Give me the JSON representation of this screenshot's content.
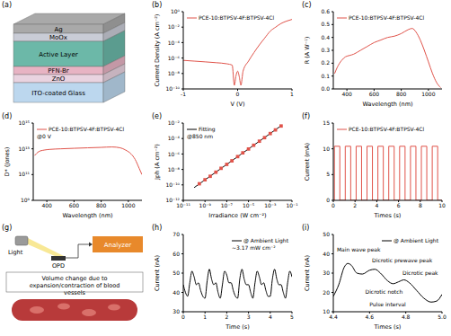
{
  "chart_data": [
    {
      "panel": "(b)",
      "type": "line",
      "log": "y",
      "x_label": "V (V)",
      "y_label": "Current Density (A cm⁻²)",
      "xlim": [
        -1,
        1
      ],
      "xticks": [
        -1,
        0,
        1
      ],
      "ylim": [
        1e-10,
        1
      ],
      "yticks": [
        {
          "value": 1e-10,
          "label": "10⁻¹⁰"
        },
        {
          "value": 1e-08,
          "label": "10⁻⁸"
        },
        {
          "value": 1e-06,
          "label": "10⁻⁶"
        },
        {
          "value": 0.0001,
          "label": "10⁻⁴"
        },
        {
          "value": 0.01,
          "label": "10⁻²"
        },
        {
          "value": 1,
          "label": "10⁰"
        }
      ],
      "legend": "upper left",
      "x": [
        -1,
        -0.8,
        -0.6,
        -0.4,
        -0.2,
        -0.1,
        -0.06,
        -0.03,
        0,
        0.03,
        0.06,
        0.1,
        0.2,
        0.3,
        0.4,
        0.5,
        0.6,
        0.7,
        0.8,
        0.9,
        1
      ],
      "series": [
        {
          "name": "PCE-10:BTPSV-4F:BTPSV-4Cl",
          "color": "#e0534a",
          "values": [
            5e-07,
            4e-07,
            3.2e-07,
            2.5e-07,
            1.8e-07,
            1.2e-07,
            3e-10,
            5e-09,
            2e-08,
            4e-09,
            3e-10,
            2e-08,
            4e-07,
            5e-06,
            5e-05,
            0.0004,
            0.003,
            0.01,
            0.03,
            0.06,
            0.1
          ]
        }
      ]
    },
    {
      "panel": "(c)",
      "type": "line",
      "x_label": "Wavelength (nm)",
      "y_label": "R (A W⁻¹)",
      "xlim": [
        300,
        1100
      ],
      "xticks": [
        400,
        600,
        800,
        1000
      ],
      "ylim": [
        0,
        0.6
      ],
      "yticks": [
        {
          "value": 0,
          "label": "0.0"
        },
        0.1,
        0.2,
        0.3,
        0.4,
        0.5,
        0.6
      ],
      "legend": "upper left",
      "x": [
        310,
        330,
        360,
        390,
        420,
        450,
        500,
        550,
        600,
        650,
        700,
        750,
        800,
        850,
        880,
        910,
        940,
        970,
        1000,
        1030,
        1060,
        1090
      ],
      "series": [
        {
          "name": "PCE-10:BTPSV-4F:BTPSV-4Cl",
          "color": "#e0534a",
          "values": [
            0.12,
            0.17,
            0.22,
            0.25,
            0.26,
            0.27,
            0.3,
            0.33,
            0.36,
            0.38,
            0.4,
            0.41,
            0.43,
            0.46,
            0.47,
            0.44,
            0.38,
            0.3,
            0.21,
            0.12,
            0.05,
            0.01
          ]
        }
      ]
    },
    {
      "panel": "(d)",
      "type": "line",
      "log": "y",
      "x_label": "Wavelength (nm)",
      "y_label": "D* (Jones)",
      "xlim": [
        300,
        1100
      ],
      "xticks": [
        400,
        600,
        800,
        1000
      ],
      "ylim": [
        1000000000.0,
        1000000000000000.0
      ],
      "yticks": [
        {
          "value": 1000000000.0,
          "label": "10⁹"
        },
        {
          "value": 100000000000.0,
          "label": "10¹¹"
        },
        {
          "value": 10000000000000.0,
          "label": "10¹³"
        },
        {
          "value": 1000000000000000.0,
          "label": "10¹⁵"
        }
      ],
      "legend": "upper left",
      "annotations": [
        "@0 V"
      ],
      "x": [
        310,
        340,
        380,
        420,
        500,
        600,
        700,
        800,
        880,
        940,
        980,
        1020,
        1050,
        1080,
        1100
      ],
      "series": [
        {
          "name": "PCE-10:BTPSV-4F:BTPSV-4Cl",
          "color": "#e0534a",
          "values": [
            3000000000000.0,
            6000000000000.0,
            8000000000000.0,
            9000000000000.0,
            10000000000000.0,
            11000000000000.0,
            12000000000000.0,
            13000000000000.0,
            14000000000000.0,
            12000000000000.0,
            8000000000000.0,
            4000000000000.0,
            1500000000000.0,
            300000000000.0,
            100000000000.0
          ]
        }
      ]
    },
    {
      "panel": "(e)",
      "type": "scatter",
      "log": true,
      "x_label": "Irradiance (W cm⁻²)",
      "y_label": "Jph (A cm⁻²)",
      "xlim": [
        1e-11,
        0.1
      ],
      "xticks": [
        {
          "value": 1e-11,
          "label": "10⁻¹¹"
        },
        {
          "value": 1e-09,
          "label": "10⁻⁹"
        },
        {
          "value": 1e-07,
          "label": "10⁻⁷"
        },
        {
          "value": 1e-05,
          "label": "10⁻⁵"
        },
        {
          "value": 0.001,
          "label": "10⁻³"
        },
        {
          "value": 0.1,
          "label": "10⁻¹"
        }
      ],
      "ylim": [
        1e-12,
        0.01
      ],
      "yticks": [
        {
          "value": 1e-12,
          "label": "10⁻¹²"
        },
        {
          "value": 1e-10,
          "label": "10⁻¹⁰"
        },
        {
          "value": 1e-08,
          "label": "10⁻⁸"
        },
        {
          "value": 1e-06,
          "label": "10⁻⁶"
        },
        {
          "value": 0.0001,
          "label": "10⁻⁴"
        },
        {
          "value": 0.01,
          "label": "10⁻²"
        }
      ],
      "legend": "upper left",
      "annotations": [
        "@850 nm"
      ],
      "series": [
        {
          "color": "#e0534a",
          "marker": "square",
          "x": [
            3e-10,
            1e-09,
            3e-09,
            1e-08,
            3e-08,
            1e-07,
            3e-07,
            1e-06,
            3e-06,
            1e-05,
            3e-05,
            0.0001,
            0.0003,
            0.001,
            0.003,
            0.01
          ],
          "values": [
            1.4e-10,
            4.6e-10,
            1.3e-09,
            4.4e-09,
            1.4e-08,
            4.5e-08,
            1.3e-07,
            4.6e-07,
            1.4e-06,
            4.4e-06,
            1.35e-05,
            4.5e-05,
            0.00013,
            0.00044,
            0.0013,
            0.0042
          ]
        },
        {
          "name": "Fitting",
          "type": "line",
          "line_style": "solid",
          "color": "#000000",
          "x": [
            1e-10,
            0.01
          ],
          "values": [
            4.5e-11,
            0.0045
          ]
        }
      ]
    },
    {
      "panel": "(f)",
      "type": "line",
      "x_label": "Times (s)",
      "y_label": "Current (mA)",
      "xlim": [
        0,
        10
      ],
      "xticks": [
        0,
        2,
        4,
        6,
        8,
        10
      ],
      "ylim": [
        0,
        15
      ],
      "yticks": [
        0,
        5,
        10,
        15
      ],
      "legend": "upper left",
      "x": [
        0,
        0.1,
        0.6,
        1.1,
        1.6,
        2.1,
        2.6,
        3.1,
        3.6,
        4.1,
        4.6,
        5.1,
        5.6,
        6.1,
        6.6,
        7.1,
        7.6,
        8.1,
        8.6,
        9.1,
        9.6,
        10
      ],
      "series": [
        {
          "name": "PCE-10:BTPSV-4F:BTPSV-4Cl",
          "color": "#e0534a",
          "line_style": "step",
          "values": [
            0,
            10.5,
            0,
            10.5,
            0,
            10.5,
            0,
            10.5,
            0,
            10.5,
            0,
            10.5,
            0,
            10.5,
            0,
            10.5,
            0,
            10.5,
            0,
            10.5,
            0,
            0
          ]
        }
      ]
    },
    {
      "panel": "(h)",
      "type": "line",
      "x_label": "Time (s)",
      "y_label": "Current (nA)",
      "xlim": [
        0,
        5
      ],
      "xticks": [
        0,
        1,
        2,
        3,
        4,
        5
      ],
      "ylim": [
        30,
        70
      ],
      "yticks": [
        30,
        40,
        50,
        60,
        70
      ],
      "legend": "upper right",
      "annotations": [
        "~3.17 mW cm⁻²"
      ],
      "x": [
        0,
        0.1,
        0.2,
        0.3,
        0.4,
        0.5,
        0.6,
        0.7,
        0.8,
        0.9,
        1,
        1.1,
        1.2,
        1.3,
        1.4,
        1.5,
        1.6,
        1.7,
        1.8,
        1.9,
        2,
        2.1,
        2.2,
        2.3,
        2.4,
        2.5,
        2.6,
        2.7,
        2.8,
        2.9,
        3,
        3.1,
        3.2,
        3.3,
        3.4,
        3.5,
        3.6,
        3.7,
        3.8,
        3.9,
        4,
        4.1,
        4.2,
        4.3,
        4.4,
        4.5,
        4.6,
        4.7,
        4.8,
        4.9,
        5
      ],
      "series": [
        {
          "name": "@ Ambient Light",
          "color": "#000000",
          "values": [
            44,
            40,
            38,
            45,
            51,
            48,
            44,
            45,
            41,
            38,
            37,
            46,
            52,
            47,
            44,
            45,
            40,
            37,
            44,
            51,
            49,
            45,
            45,
            41,
            38,
            37,
            47,
            52,
            47,
            44,
            44,
            40,
            37,
            45,
            51,
            48,
            44,
            45,
            41,
            38,
            38,
            47,
            52,
            47,
            44,
            44,
            40,
            37,
            45,
            51,
            48
          ]
        }
      ]
    },
    {
      "panel": "(i)",
      "type": "line",
      "x_label": "Times (s)",
      "y_label": "Current (nA)",
      "xlim": [
        4.4,
        5
      ],
      "xticks": [
        4.4,
        4.6,
        4.8,
        {
          "value": 5,
          "label": "5.0"
        }
      ],
      "ylim": [
        10,
        50
      ],
      "yticks": [
        10,
        20,
        30,
        40,
        50
      ],
      "legend": "upper right",
      "annotations": [
        {
          "text": "Main wave peak",
          "x": 4.54,
          "y": 42
        },
        {
          "text": "Dicrotic prewave peak",
          "x": 4.78,
          "y": 36.5
        },
        {
          "text": "Dicrotic peak",
          "x": 4.88,
          "y": 30
        },
        {
          "text": "Dicrotic notch",
          "x": 4.68,
          "y": 20.5
        },
        {
          "text": "Pulse interval",
          "x": 4.7,
          "y": 14
        }
      ],
      "x": [
        4.4,
        4.43,
        4.46,
        4.48,
        4.5,
        4.53,
        4.56,
        4.6,
        4.63,
        4.66,
        4.7,
        4.73,
        4.76,
        4.79,
        4.82,
        4.86,
        4.9,
        4.94,
        4.97,
        5
      ],
      "series": [
        {
          "name": "@ Ambient Light",
          "color": "#000000",
          "values": [
            18,
            24,
            33,
            35,
            34,
            30,
            29.5,
            31.5,
            32,
            30,
            26,
            24.5,
            25.5,
            26.5,
            25,
            21,
            17,
            15,
            15.5,
            19
          ]
        }
      ]
    }
  ],
  "diagrams": [
    {
      "panel": "(a)",
      "layers": [
        {
          "label": "Ag",
          "color": "#a9a9a9"
        },
        {
          "label": "MoOx",
          "color": "#c9ccd6"
        },
        {
          "label": "Active Layer",
          "color": "#6cb8a8"
        },
        {
          "label": "PFN-Br",
          "color": "#e7b3c3"
        },
        {
          "label": "ZnO",
          "color": "#e9d3e0"
        },
        {
          "label": "ITO-coated Glass",
          "color": "#bcd7ee"
        }
      ]
    },
    {
      "panel": "(g)",
      "labels": {
        "light": "Light",
        "detector": "OPD",
        "analyzer": "Analyzer",
        "caption": "Volume change due to expansion/contraction of blood vessels"
      }
    }
  ]
}
